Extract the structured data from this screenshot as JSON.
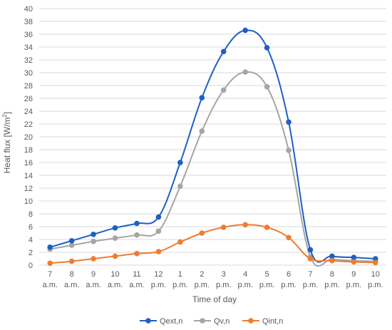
{
  "chart_data": {
    "type": "line",
    "smooth": true,
    "xlabel": "Time of day",
    "ylabel": "Heat flux [W/m",
    "ylabel_sup": "2",
    "ylabel_end": "]",
    "ylim": [
      0,
      40
    ],
    "ytick_step": 2,
    "grid": true,
    "legend_position": "bottom",
    "categories": [
      [
        "7",
        "a.m."
      ],
      [
        "8",
        "a.m."
      ],
      [
        "9",
        "a.m."
      ],
      [
        "10",
        "a.m."
      ],
      [
        "11",
        "a.m."
      ],
      [
        "12",
        "p.m."
      ],
      [
        "1",
        "p.m."
      ],
      [
        "2",
        "p.m."
      ],
      [
        "3",
        "p.m."
      ],
      [
        "4",
        "p.m."
      ],
      [
        "5",
        "p.m."
      ],
      [
        "6",
        "p.m."
      ],
      [
        "7",
        "p.m."
      ],
      [
        "8",
        "p.m."
      ],
      [
        "9",
        "p.m."
      ],
      [
        "10",
        "p.m."
      ]
    ],
    "series": [
      {
        "name": "Qext,n",
        "color": "#1f5fc4",
        "values": [
          2.8,
          3.8,
          4.8,
          5.8,
          6.5,
          7.5,
          16.0,
          26.1,
          33.3,
          36.6,
          33.9,
          22.3,
          2.4,
          1.4,
          1.2,
          1.0
        ]
      },
      {
        "name": "Qv,n",
        "color": "#a5a5a5",
        "values": [
          2.5,
          3.1,
          3.7,
          4.2,
          4.7,
          5.3,
          12.3,
          20.9,
          27.3,
          30.1,
          27.8,
          17.9,
          1.3,
          0.9,
          0.7,
          0.6
        ]
      },
      {
        "name": "Qint,n",
        "color": "#ed7d31",
        "values": [
          0.3,
          0.6,
          1.0,
          1.4,
          1.8,
          2.1,
          3.6,
          5.0,
          5.9,
          6.3,
          5.9,
          4.3,
          1.0,
          0.7,
          0.5,
          0.4
        ]
      }
    ]
  }
}
